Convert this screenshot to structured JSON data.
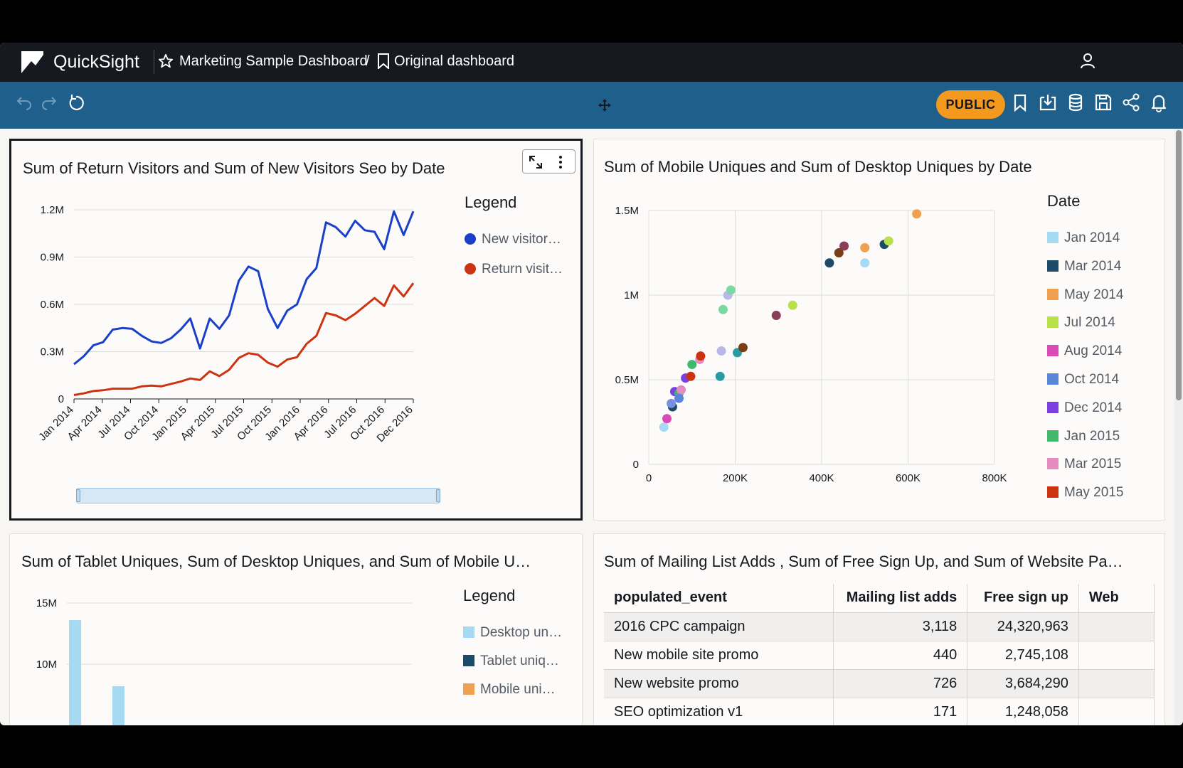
{
  "header": {
    "brand": "QuickSight",
    "breadcrumb_dashboard": "Marketing Sample Dashboard",
    "breadcrumb_sep": "/",
    "breadcrumb_sheet": "Original dashboard"
  },
  "toolbar": {
    "public_label": "PUBLIC",
    "accent_color": "#f39a1e",
    "bar_color": "#1f5f8b"
  },
  "panels": {
    "line": {
      "title": "Sum of Return Visitors and Sum of New Visitors Seo by Date",
      "legend_title": "Legend",
      "legend": [
        "New visitor…",
        "Return visit…"
      ]
    },
    "scatter": {
      "title": "Sum of Mobile Uniques and Sum of Desktop Uniques by Date",
      "legend_title": "Date",
      "legend": [
        "Jan 2014",
        "Mar 2014",
        "May 2014",
        "Jul 2014",
        "Aug 2014",
        "Oct 2014",
        "Dec 2014",
        "Jan 2015",
        "Mar 2015",
        "May 2015"
      ]
    },
    "bar": {
      "title": "Sum of Tablet Uniques, Sum of Desktop Uniques, and Sum of Mobile U…",
      "legend_title": "Legend",
      "legend": [
        "Desktop un…",
        "Tablet uniq…",
        "Mobile uni…"
      ]
    },
    "table": {
      "title": "Sum of Mailing List Adds , Sum of Free Sign Up, and Sum of Website Pa…",
      "columns": [
        "populated_event",
        "Mailing list adds",
        "Free sign up",
        "Web"
      ],
      "rows": [
        [
          "2016 CPC campaign",
          "3,118",
          "24,320,963",
          ""
        ],
        [
          "New mobile site promo",
          "440",
          "2,745,108",
          ""
        ],
        [
          "New website promo",
          "726",
          "3,684,290",
          ""
        ],
        [
          "SEO optimization v1",
          "171",
          "1,248,058",
          ""
        ]
      ]
    }
  },
  "chart_data": [
    {
      "type": "line",
      "title": "Sum of Return Visitors and Sum of New Visitors Seo by Date",
      "x_ticks": [
        "Jan 2014",
        "Apr 2014",
        "Jul 2014",
        "Oct 2014",
        "Jan 2015",
        "Apr 2015",
        "Jul 2015",
        "Oct 2015",
        "Jan 2016",
        "Apr 2016",
        "Jul 2016",
        "Oct 2016",
        "Dec 2016"
      ],
      "y_ticks": [
        "0",
        "0.3M",
        "0.6M",
        "0.9M",
        "1.2M"
      ],
      "ylim": [
        0,
        1200000
      ],
      "legend_placement": "right",
      "series": [
        {
          "name": "New visitor…",
          "color": "#1a3fc8",
          "values": [
            220000,
            270000,
            340000,
            360000,
            440000,
            450000,
            445000,
            400000,
            365000,
            355000,
            385000,
            440000,
            510000,
            320000,
            510000,
            445000,
            530000,
            750000,
            840000,
            810000,
            570000,
            450000,
            560000,
            600000,
            760000,
            830000,
            1120000,
            1090000,
            1030000,
            1130000,
            1070000,
            1060000,
            950000,
            1190000,
            1040000,
            1190000
          ]
        },
        {
          "name": "Return visit…",
          "color": "#cc3311",
          "values": [
            25000,
            35000,
            50000,
            55000,
            65000,
            65000,
            65000,
            80000,
            85000,
            80000,
            95000,
            110000,
            130000,
            120000,
            175000,
            145000,
            185000,
            260000,
            290000,
            280000,
            230000,
            205000,
            250000,
            265000,
            350000,
            400000,
            545000,
            530000,
            500000,
            540000,
            590000,
            640000,
            590000,
            720000,
            650000,
            735000
          ]
        }
      ]
    },
    {
      "type": "scatter",
      "title": "Sum of Mobile Uniques and Sum of Desktop Uniques by Date",
      "x_ticks": [
        "0",
        "200K",
        "400K",
        "600K",
        "800K"
      ],
      "y_ticks": [
        "0",
        "0.5M",
        "1M",
        "1.5M"
      ],
      "xlim": [
        0,
        800000
      ],
      "ylim": [
        0,
        1500000
      ],
      "legend_placement": "right",
      "points": [
        {
          "x": 35000,
          "y": 220000,
          "color": "#a6d9f2"
        },
        {
          "x": 42000,
          "y": 270000,
          "color": "#d94ab5"
        },
        {
          "x": 55000,
          "y": 340000,
          "color": "#1d4a66"
        },
        {
          "x": 52000,
          "y": 360000,
          "color": "#7b8fe0"
        },
        {
          "x": 60000,
          "y": 430000,
          "color": "#7b3fe4"
        },
        {
          "x": 70000,
          "y": 420000,
          "color": "#42b86c"
        },
        {
          "x": 75000,
          "y": 440000,
          "color": "#e48cc2"
        },
        {
          "x": 70000,
          "y": 390000,
          "color": "#5a86d9"
        },
        {
          "x": 85000,
          "y": 510000,
          "color": "#7b3fe4"
        },
        {
          "x": 97000,
          "y": 520000,
          "color": "#cc3311"
        },
        {
          "x": 100000,
          "y": 590000,
          "color": "#42b86c"
        },
        {
          "x": 118000,
          "y": 620000,
          "color": "#e48cc2"
        },
        {
          "x": 120000,
          "y": 640000,
          "color": "#cc3311"
        },
        {
          "x": 165000,
          "y": 520000,
          "color": "#2a9aa3"
        },
        {
          "x": 168000,
          "y": 670000,
          "color": "#b9b9e8"
        },
        {
          "x": 172000,
          "y": 915000,
          "color": "#7ad9a0"
        },
        {
          "x": 183000,
          "y": 1000000,
          "color": "#b9b9e8"
        },
        {
          "x": 190000,
          "y": 1030000,
          "color": "#7ad9a0"
        },
        {
          "x": 205000,
          "y": 660000,
          "color": "#2a9aa3"
        },
        {
          "x": 218000,
          "y": 690000,
          "color": "#7a3e14"
        },
        {
          "x": 295000,
          "y": 880000,
          "color": "#8a3e5a"
        },
        {
          "x": 333000,
          "y": 940000,
          "color": "#b7e04a"
        },
        {
          "x": 418000,
          "y": 1190000,
          "color": "#1d4a66"
        },
        {
          "x": 440000,
          "y": 1250000,
          "color": "#7a3e14"
        },
        {
          "x": 452000,
          "y": 1290000,
          "color": "#8a3e5a"
        },
        {
          "x": 500000,
          "y": 1190000,
          "color": "#a6d9f2"
        },
        {
          "x": 500000,
          "y": 1280000,
          "color": "#f0a050"
        },
        {
          "x": 545000,
          "y": 1300000,
          "color": "#1d4a66"
        },
        {
          "x": 555000,
          "y": 1320000,
          "color": "#b7e04a"
        },
        {
          "x": 620000,
          "y": 1480000,
          "color": "#f0a050"
        }
      ],
      "legend_colors": [
        "#a6d9f2",
        "#1d4a66",
        "#f0a050",
        "#b7e04a",
        "#d94ab5",
        "#5a86d9",
        "#7b3fe4",
        "#42b86c",
        "#e48cc2",
        "#cc3311"
      ]
    },
    {
      "type": "bar",
      "title": "Sum of Tablet Uniques, Sum of Desktop Uniques, and Sum of Mobile U…",
      "y_ticks": [
        "10M",
        "15M"
      ],
      "legend_placement": "right",
      "series": [
        {
          "name": "Desktop un…",
          "color": "#a6d9f2",
          "values": [
            13600000,
            8200000
          ]
        },
        {
          "name": "Tablet uniq…",
          "color": "#1d4a66",
          "values": []
        },
        {
          "name": "Mobile uni…",
          "color": "#f0a050",
          "values": []
        }
      ]
    }
  ]
}
